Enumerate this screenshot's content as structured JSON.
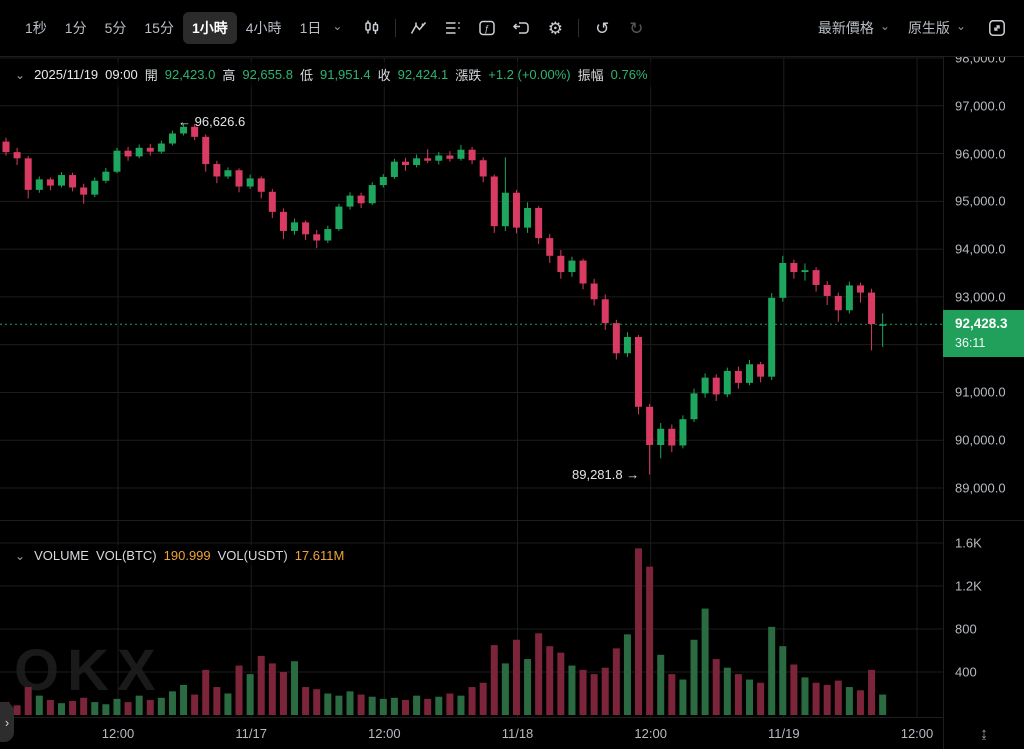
{
  "toolbar": {
    "timeframes": [
      {
        "label": "1秒",
        "active": false
      },
      {
        "label": "1分",
        "active": false
      },
      {
        "label": "5分",
        "active": false
      },
      {
        "label": "15分",
        "active": false
      },
      {
        "label": "1小時",
        "active": true
      },
      {
        "label": "4小時",
        "active": false
      },
      {
        "label": "1日",
        "active": false
      }
    ],
    "right": {
      "price_mode": "最新價格",
      "version": "原生版"
    }
  },
  "icons": {
    "chevron_down": "⌄",
    "chevron_right": "›",
    "arrow_left": "←",
    "arrow_right": "→",
    "gear": "⚙",
    "undo": "↺",
    "redo": "↻",
    "axis_resize": "↨"
  },
  "ohlc_bar": {
    "date": "2025/11/19",
    "time": "09:00",
    "open_label": "開",
    "open": "92,423.0",
    "high_label": "高",
    "high": "92,655.8",
    "low_label": "低",
    "low": "91,951.4",
    "close_label": "收",
    "close": "92,424.1",
    "change_label": "漲跌",
    "change": "+1.2 (+0.00%)",
    "amplitude_label": "振幅",
    "amplitude": "0.76%"
  },
  "volume_bar": {
    "title": "VOLUME",
    "vol_btc_label": "VOL(BTC)",
    "vol_btc": "190.999",
    "vol_usdt_label": "VOL(USDT)",
    "vol_usdt": "17.611M"
  },
  "price_badge": {
    "price": "92,428.3",
    "countdown": "36:11"
  },
  "annotations": {
    "high": {
      "text": "96,626.6"
    },
    "low": {
      "text": "89,281.8"
    }
  },
  "watermark": "OKX",
  "colors": {
    "up": "#1EA65F",
    "down": "#DA3B62",
    "vol_up": "#2B6B42",
    "vol_down": "#7C2439",
    "grid": "#1D1D1D",
    "accent": "#21A05C",
    "axis_text": "#B6BBC1",
    "legend_green": "#2DB572",
    "legend_orange": "#F0A23A"
  },
  "chart_data": {
    "type": "candlestick+volume",
    "symbol_timeframe": "1小時",
    "time_span": "2025/11/16 02:00 - 2025/11/19 09:00",
    "current_price": 92428.3,
    "marked_high": 96626.6,
    "marked_low": 89281.8,
    "price_axis": {
      "labels": [
        "98,000.0",
        "97,000.0",
        "96,000.0",
        "95,000.0",
        "94,000.0",
        "93,000.0",
        "91,000.0",
        "90,000.0",
        "89,000.0"
      ],
      "values": [
        98000,
        97000,
        96000,
        95000,
        94000,
        93000,
        91000,
        90000,
        89000
      ],
      "ylim": [
        88330,
        98000
      ]
    },
    "volume_axis": {
      "labels": [
        "1.6K",
        "1.2K",
        "800",
        "400"
      ],
      "values": [
        1600,
        1200,
        800,
        400
      ],
      "ylim": [
        0,
        1800
      ]
    },
    "time_axis": {
      "labels": [
        "12:00",
        "11/17",
        "12:00",
        "11/18",
        "12:00",
        "11/19",
        "12:00"
      ]
    },
    "candles": [
      [
        96250,
        96330,
        95960,
        96030
      ],
      [
        96030,
        96120,
        95760,
        95900
      ],
      [
        95900,
        95950,
        95060,
        95240
      ],
      [
        95240,
        95520,
        95180,
        95460
      ],
      [
        95460,
        95500,
        95230,
        95330
      ],
      [
        95330,
        95610,
        95290,
        95550
      ],
      [
        95550,
        95600,
        95210,
        95290
      ],
      [
        95290,
        95370,
        94950,
        95140
      ],
      [
        95140,
        95500,
        95090,
        95430
      ],
      [
        95430,
        95700,
        95380,
        95620
      ],
      [
        95620,
        96120,
        95590,
        96060
      ],
      [
        96060,
        96140,
        95850,
        95940
      ],
      [
        95940,
        96190,
        95900,
        96120
      ],
      [
        96120,
        96200,
        95960,
        96040
      ],
      [
        96040,
        96270,
        96000,
        96210
      ],
      [
        96210,
        96480,
        96170,
        96420
      ],
      [
        96420,
        96626.6,
        96380,
        96560
      ],
      [
        96560,
        96620,
        96280,
        96350
      ],
      [
        96350,
        96400,
        95620,
        95780
      ],
      [
        95780,
        95850,
        95380,
        95520
      ],
      [
        95520,
        95710,
        95470,
        95650
      ],
      [
        95650,
        95690,
        95190,
        95310
      ],
      [
        95310,
        95560,
        95260,
        95480
      ],
      [
        95480,
        95520,
        95060,
        95200
      ],
      [
        95200,
        95260,
        94650,
        94780
      ],
      [
        94780,
        94850,
        94210,
        94380
      ],
      [
        94380,
        94640,
        94300,
        94560
      ],
      [
        94560,
        94600,
        94190,
        94310
      ],
      [
        94310,
        94400,
        94020,
        94180
      ],
      [
        94180,
        94490,
        94130,
        94420
      ],
      [
        94420,
        94950,
        94380,
        94890
      ],
      [
        94890,
        95190,
        94830,
        95120
      ],
      [
        95120,
        95180,
        94860,
        94960
      ],
      [
        94960,
        95400,
        94920,
        95340
      ],
      [
        95340,
        95570,
        95290,
        95510
      ],
      [
        95510,
        95890,
        95470,
        95830
      ],
      [
        95830,
        95910,
        95640,
        95760
      ],
      [
        95760,
        95980,
        95710,
        95900
      ],
      [
        95900,
        96090,
        95800,
        95850
      ],
      [
        95850,
        96030,
        95770,
        95960
      ],
      [
        95960,
        96050,
        95830,
        95890
      ],
      [
        95890,
        96180,
        95850,
        96080
      ],
      [
        96080,
        96140,
        95780,
        95860
      ],
      [
        95860,
        95920,
        95400,
        95520
      ],
      [
        95520,
        95560,
        94340,
        94480
      ],
      [
        94480,
        95920,
        94380,
        95180
      ],
      [
        95180,
        95240,
        94330,
        94450
      ],
      [
        94450,
        94980,
        94340,
        94860
      ],
      [
        94860,
        94900,
        94110,
        94230
      ],
      [
        94230,
        94320,
        93710,
        93860
      ],
      [
        93860,
        93980,
        93380,
        93520
      ],
      [
        93520,
        93840,
        93420,
        93760
      ],
      [
        93760,
        93800,
        93160,
        93280
      ],
      [
        93280,
        93380,
        92820,
        92950
      ],
      [
        92950,
        93050,
        92310,
        92450
      ],
      [
        92450,
        92520,
        91690,
        91820
      ],
      [
        91820,
        92260,
        91740,
        92160
      ],
      [
        92160,
        92200,
        90540,
        90700
      ],
      [
        90700,
        90760,
        89281.8,
        89900
      ],
      [
        89900,
        90360,
        89620,
        90240
      ],
      [
        90240,
        90330,
        89750,
        89890
      ],
      [
        89890,
        90520,
        89830,
        90440
      ],
      [
        90440,
        91080,
        90380,
        90980
      ],
      [
        90980,
        91400,
        90890,
        91310
      ],
      [
        91310,
        91380,
        90820,
        90960
      ],
      [
        90960,
        91520,
        90900,
        91450
      ],
      [
        91450,
        91540,
        91080,
        91200
      ],
      [
        91200,
        91680,
        91150,
        91590
      ],
      [
        91590,
        91640,
        91210,
        91330
      ],
      [
        91330,
        93080,
        91260,
        92980
      ],
      [
        92980,
        93860,
        92900,
        93710
      ],
      [
        93710,
        93780,
        93380,
        93520
      ],
      [
        93520,
        93700,
        93340,
        93560
      ],
      [
        93560,
        93620,
        93110,
        93250
      ],
      [
        93250,
        93330,
        92830,
        93020
      ],
      [
        93020,
        93090,
        92480,
        92720
      ],
      [
        92720,
        93320,
        92650,
        93240
      ],
      [
        93240,
        93300,
        92880,
        93090
      ],
      [
        93090,
        93170,
        91880,
        92430
      ],
      [
        92423,
        92655.8,
        91951.4,
        92424.1
      ]
    ],
    "volumes": [
      120,
      90,
      260,
      180,
      140,
      110,
      130,
      160,
      120,
      100,
      150,
      120,
      180,
      140,
      160,
      220,
      280,
      190,
      420,
      260,
      200,
      460,
      380,
      550,
      480,
      400,
      500,
      260,
      240,
      200,
      180,
      220,
      190,
      170,
      150,
      160,
      140,
      180,
      150,
      170,
      200,
      180,
      260,
      300,
      650,
      480,
      700,
      520,
      760,
      640,
      580,
      460,
      420,
      380,
      440,
      620,
      750,
      1550,
      1380,
      560,
      380,
      330,
      700,
      990,
      520,
      440,
      380,
      330,
      300,
      820,
      640,
      470,
      350,
      300,
      280,
      320,
      260,
      230,
      420,
      190
    ]
  }
}
